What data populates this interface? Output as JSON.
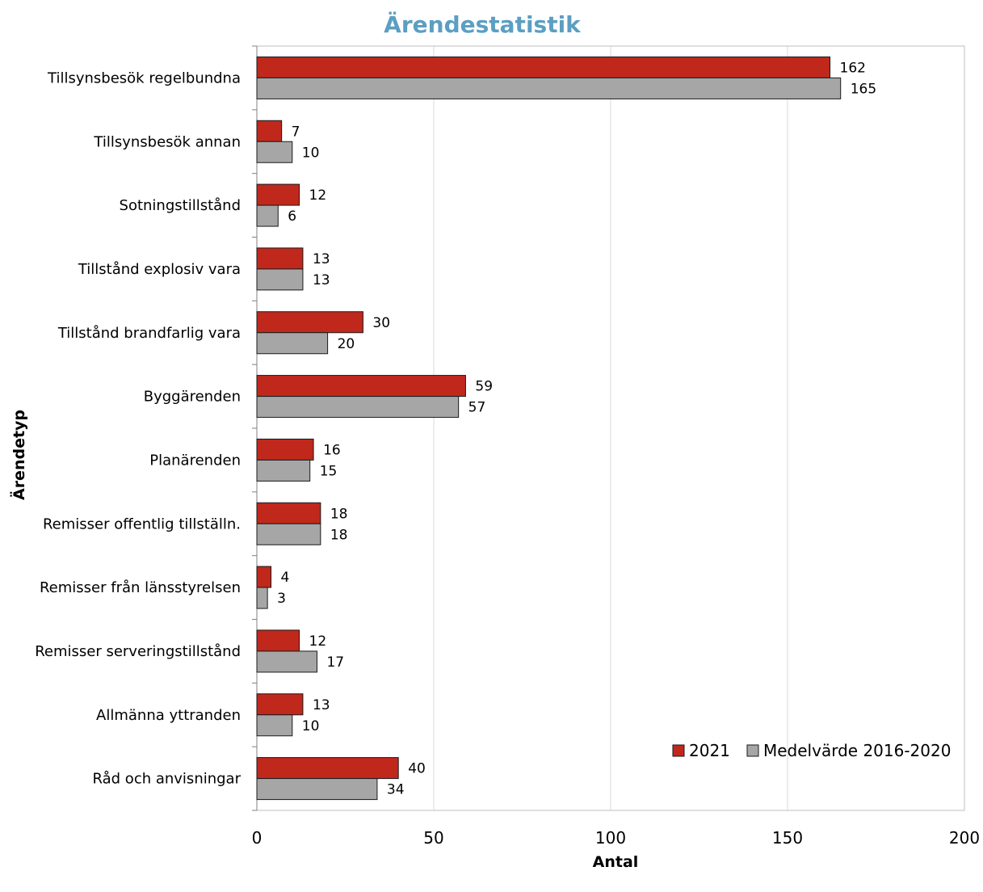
{
  "chart_data": {
    "type": "bar",
    "orientation": "horizontal",
    "title": "Ärendestatistik",
    "xlabel": "Antal",
    "ylabel": "Ärendetyp",
    "xlim": [
      0,
      200
    ],
    "xticks": [
      0,
      50,
      100,
      150,
      200
    ],
    "grid": true,
    "legend_position": "bottom-right",
    "categories": [
      "Tillsynsbesök regelbundna",
      "Tillsynsbesök annan",
      "Sotningstillstånd",
      "Tillstånd explosiv vara",
      "Tillstånd brandfarlig vara",
      "Byggärenden",
      "Planärenden",
      "Remisser offentlig tillställn.",
      "Remisser från länsstyrelsen",
      "Remisser serveringstillstånd",
      "Allmänna yttranden",
      "Råd och anvisningar"
    ],
    "series": [
      {
        "name": "2021",
        "color": "#c0281c",
        "values": [
          162,
          7,
          12,
          13,
          30,
          59,
          16,
          18,
          4,
          12,
          13,
          40
        ]
      },
      {
        "name": "Medelvärde 2016-2020",
        "color": "#a6a6a6",
        "values": [
          165,
          10,
          6,
          13,
          20,
          57,
          15,
          18,
          3,
          17,
          10,
          34
        ]
      }
    ]
  }
}
